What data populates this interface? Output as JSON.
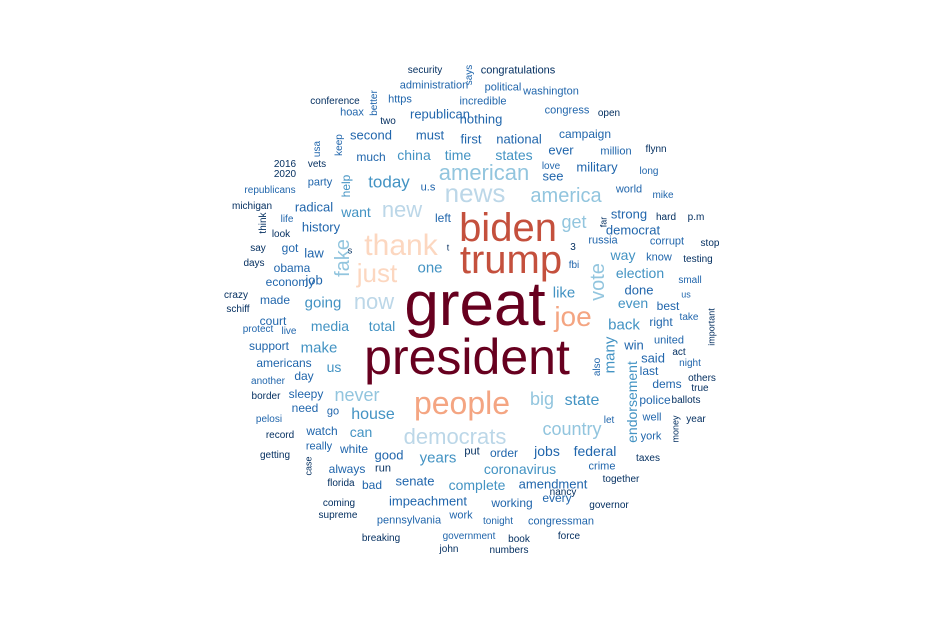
{
  "palette": {
    "darkred": "#67001f",
    "red": "#c4503d",
    "salmon": "#f4a582",
    "peach": "#fcd7c0",
    "lightblue": "#bcd7e8",
    "skyblue": "#92c5de",
    "midblue": "#4393c3",
    "blue": "#2166ac",
    "navy": "#053061"
  },
  "words": [
    {
      "text": "great",
      "tone": "darkred"
    },
    {
      "text": "president",
      "tone": "darkred"
    },
    {
      "text": "biden",
      "tone": "red"
    },
    {
      "text": "trump",
      "tone": "red"
    },
    {
      "text": "people",
      "tone": "salmon"
    },
    {
      "text": "joe",
      "tone": "salmon"
    },
    {
      "text": "thank",
      "tone": "peach"
    },
    {
      "text": "just",
      "tone": "peach"
    },
    {
      "text": "news",
      "tone": "lightblue"
    },
    {
      "text": "democrats",
      "tone": "lightblue"
    },
    {
      "text": "american",
      "tone": "skyblue"
    },
    {
      "text": "america",
      "tone": "skyblue"
    },
    {
      "text": "now",
      "tone": "lightblue"
    },
    {
      "text": "new",
      "tone": "lightblue"
    },
    {
      "text": "fake",
      "tone": "skyblue"
    },
    {
      "text": "vote",
      "tone": "skyblue"
    },
    {
      "text": "get",
      "tone": "skyblue"
    },
    {
      "text": "never",
      "tone": "skyblue"
    },
    {
      "text": "big",
      "tone": "skyblue"
    },
    {
      "text": "country",
      "tone": "skyblue"
    },
    {
      "text": "state",
      "tone": "midblue"
    },
    {
      "text": "today",
      "tone": "midblue"
    },
    {
      "text": "like",
      "tone": "midblue"
    },
    {
      "text": "many",
      "tone": "midblue"
    },
    {
      "text": "house",
      "tone": "midblue"
    },
    {
      "text": "media",
      "tone": "midblue"
    },
    {
      "text": "make",
      "tone": "midblue"
    },
    {
      "text": "back",
      "tone": "midblue"
    },
    {
      "text": "going",
      "tone": "midblue"
    },
    {
      "text": "coronavirus",
      "tone": "midblue"
    },
    {
      "text": "years",
      "tone": "midblue"
    },
    {
      "text": "one",
      "tone": "midblue"
    },
    {
      "text": "want",
      "tone": "midblue"
    },
    {
      "text": "states",
      "tone": "midblue"
    },
    {
      "text": "china",
      "tone": "midblue"
    },
    {
      "text": "time",
      "tone": "midblue"
    },
    {
      "text": "election",
      "tone": "midblue"
    },
    {
      "text": "even",
      "tone": "midblue"
    },
    {
      "text": "complete",
      "tone": "midblue"
    },
    {
      "text": "endorsement",
      "tone": "midblue"
    },
    {
      "text": "jobs",
      "tone": "blue"
    },
    {
      "text": "total",
      "tone": "midblue"
    },
    {
      "text": "can",
      "tone": "midblue"
    },
    {
      "text": "us",
      "tone": "midblue"
    },
    {
      "text": "way",
      "tone": "midblue"
    },
    {
      "text": "federal",
      "tone": "blue"
    },
    {
      "text": "senate",
      "tone": "blue"
    },
    {
      "text": "impeachment",
      "tone": "blue"
    },
    {
      "text": "amendment",
      "tone": "blue"
    },
    {
      "text": "good",
      "tone": "blue"
    },
    {
      "text": "military",
      "tone": "blue"
    },
    {
      "text": "first",
      "tone": "blue"
    },
    {
      "text": "national",
      "tone": "blue"
    },
    {
      "text": "must",
      "tone": "blue"
    },
    {
      "text": "second",
      "tone": "blue"
    },
    {
      "text": "republican",
      "tone": "blue"
    },
    {
      "text": "nothing",
      "tone": "blue"
    },
    {
      "text": "ever",
      "tone": "blue"
    },
    {
      "text": "see",
      "tone": "blue"
    },
    {
      "text": "history",
      "tone": "blue"
    },
    {
      "text": "radical",
      "tone": "blue"
    },
    {
      "text": "law",
      "tone": "blue"
    },
    {
      "text": "job",
      "tone": "blue"
    },
    {
      "text": "done",
      "tone": "blue"
    },
    {
      "text": "said",
      "tone": "blue"
    },
    {
      "text": "win",
      "tone": "blue"
    },
    {
      "text": "strong",
      "tone": "blue"
    },
    {
      "text": "democrat",
      "tone": "blue"
    },
    {
      "text": "left",
      "tone": "blue"
    },
    {
      "text": "much",
      "tone": "blue"
    },
    {
      "text": "help",
      "tone": "midblue"
    },
    {
      "text": "party",
      "tone": "blue"
    },
    {
      "text": "obama",
      "tone": "blue"
    },
    {
      "text": "economy",
      "tone": "blue"
    },
    {
      "text": "made",
      "tone": "blue"
    },
    {
      "text": "got",
      "tone": "blue"
    },
    {
      "text": "court",
      "tone": "blue"
    },
    {
      "text": "support",
      "tone": "blue"
    },
    {
      "text": "americans",
      "tone": "blue"
    },
    {
      "text": "day",
      "tone": "blue"
    },
    {
      "text": "sleepy",
      "tone": "blue"
    },
    {
      "text": "need",
      "tone": "blue"
    },
    {
      "text": "watch",
      "tone": "blue"
    },
    {
      "text": "go",
      "tone": "blue"
    },
    {
      "text": "white",
      "tone": "blue"
    },
    {
      "text": "really",
      "tone": "blue"
    },
    {
      "text": "always",
      "tone": "blue"
    },
    {
      "text": "run",
      "tone": "navy"
    },
    {
      "text": "bad",
      "tone": "blue"
    },
    {
      "text": "order",
      "tone": "blue"
    },
    {
      "text": "put",
      "tone": "navy"
    },
    {
      "text": "working",
      "tone": "blue"
    },
    {
      "text": "every",
      "tone": "blue"
    },
    {
      "text": "crime",
      "tone": "blue"
    },
    {
      "text": "united",
      "tone": "blue"
    },
    {
      "text": "last",
      "tone": "blue"
    },
    {
      "text": "dems",
      "tone": "blue"
    },
    {
      "text": "police",
      "tone": "blue"
    },
    {
      "text": "well",
      "tone": "blue"
    },
    {
      "text": "york",
      "tone": "blue"
    },
    {
      "text": "best",
      "tone": "blue"
    },
    {
      "text": "right",
      "tone": "blue"
    },
    {
      "text": "know",
      "tone": "blue"
    },
    {
      "text": "corrupt",
      "tone": "blue"
    },
    {
      "text": "russia",
      "tone": "blue"
    },
    {
      "text": "fbi",
      "tone": "blue"
    },
    {
      "text": "world",
      "tone": "blue"
    },
    {
      "text": "million",
      "tone": "blue"
    },
    {
      "text": "campaign",
      "tone": "blue"
    },
    {
      "text": "incredible",
      "tone": "blue"
    },
    {
      "text": "political",
      "tone": "blue"
    },
    {
      "text": "washington",
      "tone": "blue"
    },
    {
      "text": "congress",
      "tone": "blue"
    },
    {
      "text": "open",
      "tone": "navy"
    },
    {
      "text": "administration",
      "tone": "blue"
    },
    {
      "text": "congratulations",
      "tone": "navy"
    },
    {
      "text": "security",
      "tone": "navy"
    },
    {
      "text": "says",
      "tone": "blue"
    },
    {
      "text": "https",
      "tone": "blue"
    },
    {
      "text": "better",
      "tone": "blue"
    },
    {
      "text": "two",
      "tone": "navy"
    },
    {
      "text": "hoax",
      "tone": "blue"
    },
    {
      "text": "conference",
      "tone": "navy"
    },
    {
      "text": "keep",
      "tone": "blue"
    },
    {
      "text": "usa",
      "tone": "blue"
    },
    {
      "text": "vets",
      "tone": "navy"
    },
    {
      "text": "2016",
      "tone": "navy"
    },
    {
      "text": "2020",
      "tone": "navy"
    },
    {
      "text": "republicans",
      "tone": "blue"
    },
    {
      "text": "michigan",
      "tone": "navy"
    },
    {
      "text": "think",
      "tone": "navy"
    },
    {
      "text": "life",
      "tone": "blue"
    },
    {
      "text": "look",
      "tone": "navy"
    },
    {
      "text": "say",
      "tone": "navy"
    },
    {
      "text": "days",
      "tone": "navy"
    },
    {
      "text": "crazy",
      "tone": "navy"
    },
    {
      "text": "schiff",
      "tone": "navy"
    },
    {
      "text": "protect",
      "tone": "blue"
    },
    {
      "text": "live",
      "tone": "blue"
    },
    {
      "text": "another",
      "tone": "blue"
    },
    {
      "text": "border",
      "tone": "navy"
    },
    {
      "text": "pelosi",
      "tone": "blue"
    },
    {
      "text": "record",
      "tone": "navy"
    },
    {
      "text": "getting",
      "tone": "navy"
    },
    {
      "text": "case",
      "tone": "navy"
    },
    {
      "text": "florida",
      "tone": "navy"
    },
    {
      "text": "coming",
      "tone": "navy"
    },
    {
      "text": "supreme",
      "tone": "navy"
    },
    {
      "text": "breaking",
      "tone": "navy"
    },
    {
      "text": "pennsylvania",
      "tone": "blue"
    },
    {
      "text": "work",
      "tone": "blue"
    },
    {
      "text": "tonight",
      "tone": "blue"
    },
    {
      "text": "congressman",
      "tone": "blue"
    },
    {
      "text": "government",
      "tone": "blue"
    },
    {
      "text": "book",
      "tone": "navy"
    },
    {
      "text": "john",
      "tone": "navy"
    },
    {
      "text": "numbers",
      "tone": "navy"
    },
    {
      "text": "force",
      "tone": "navy"
    },
    {
      "text": "nancy",
      "tone": "navy"
    },
    {
      "text": "governor",
      "tone": "navy"
    },
    {
      "text": "together",
      "tone": "navy"
    },
    {
      "text": "taxes",
      "tone": "navy"
    },
    {
      "text": "money",
      "tone": "navy"
    },
    {
      "text": "year",
      "tone": "navy"
    },
    {
      "text": "ballots",
      "tone": "navy"
    },
    {
      "text": "others",
      "tone": "navy"
    },
    {
      "text": "true",
      "tone": "navy"
    },
    {
      "text": "night",
      "tone": "blue"
    },
    {
      "text": "act",
      "tone": "navy"
    },
    {
      "text": "important",
      "tone": "navy"
    },
    {
      "text": "take",
      "tone": "blue"
    },
    {
      "text": "us",
      "tone": "blue"
    },
    {
      "text": "small",
      "tone": "blue"
    },
    {
      "text": "testing",
      "tone": "navy"
    },
    {
      "text": "stop",
      "tone": "navy"
    },
    {
      "text": "p.m",
      "tone": "navy"
    },
    {
      "text": "hard",
      "tone": "navy"
    },
    {
      "text": "mike",
      "tone": "blue"
    },
    {
      "text": "long",
      "tone": "blue"
    },
    {
      "text": "flynn",
      "tone": "navy"
    },
    {
      "text": "love",
      "tone": "blue"
    },
    {
      "text": "far",
      "tone": "navy"
    },
    {
      "text": "u.s",
      "tone": "blue"
    },
    {
      "text": "3",
      "tone": "navy"
    },
    {
      "text": "s",
      "tone": "navy"
    },
    {
      "text": "t",
      "tone": "navy"
    },
    {
      "text": "also",
      "tone": "blue"
    },
    {
      "text": "let",
      "tone": "blue"
    }
  ]
}
